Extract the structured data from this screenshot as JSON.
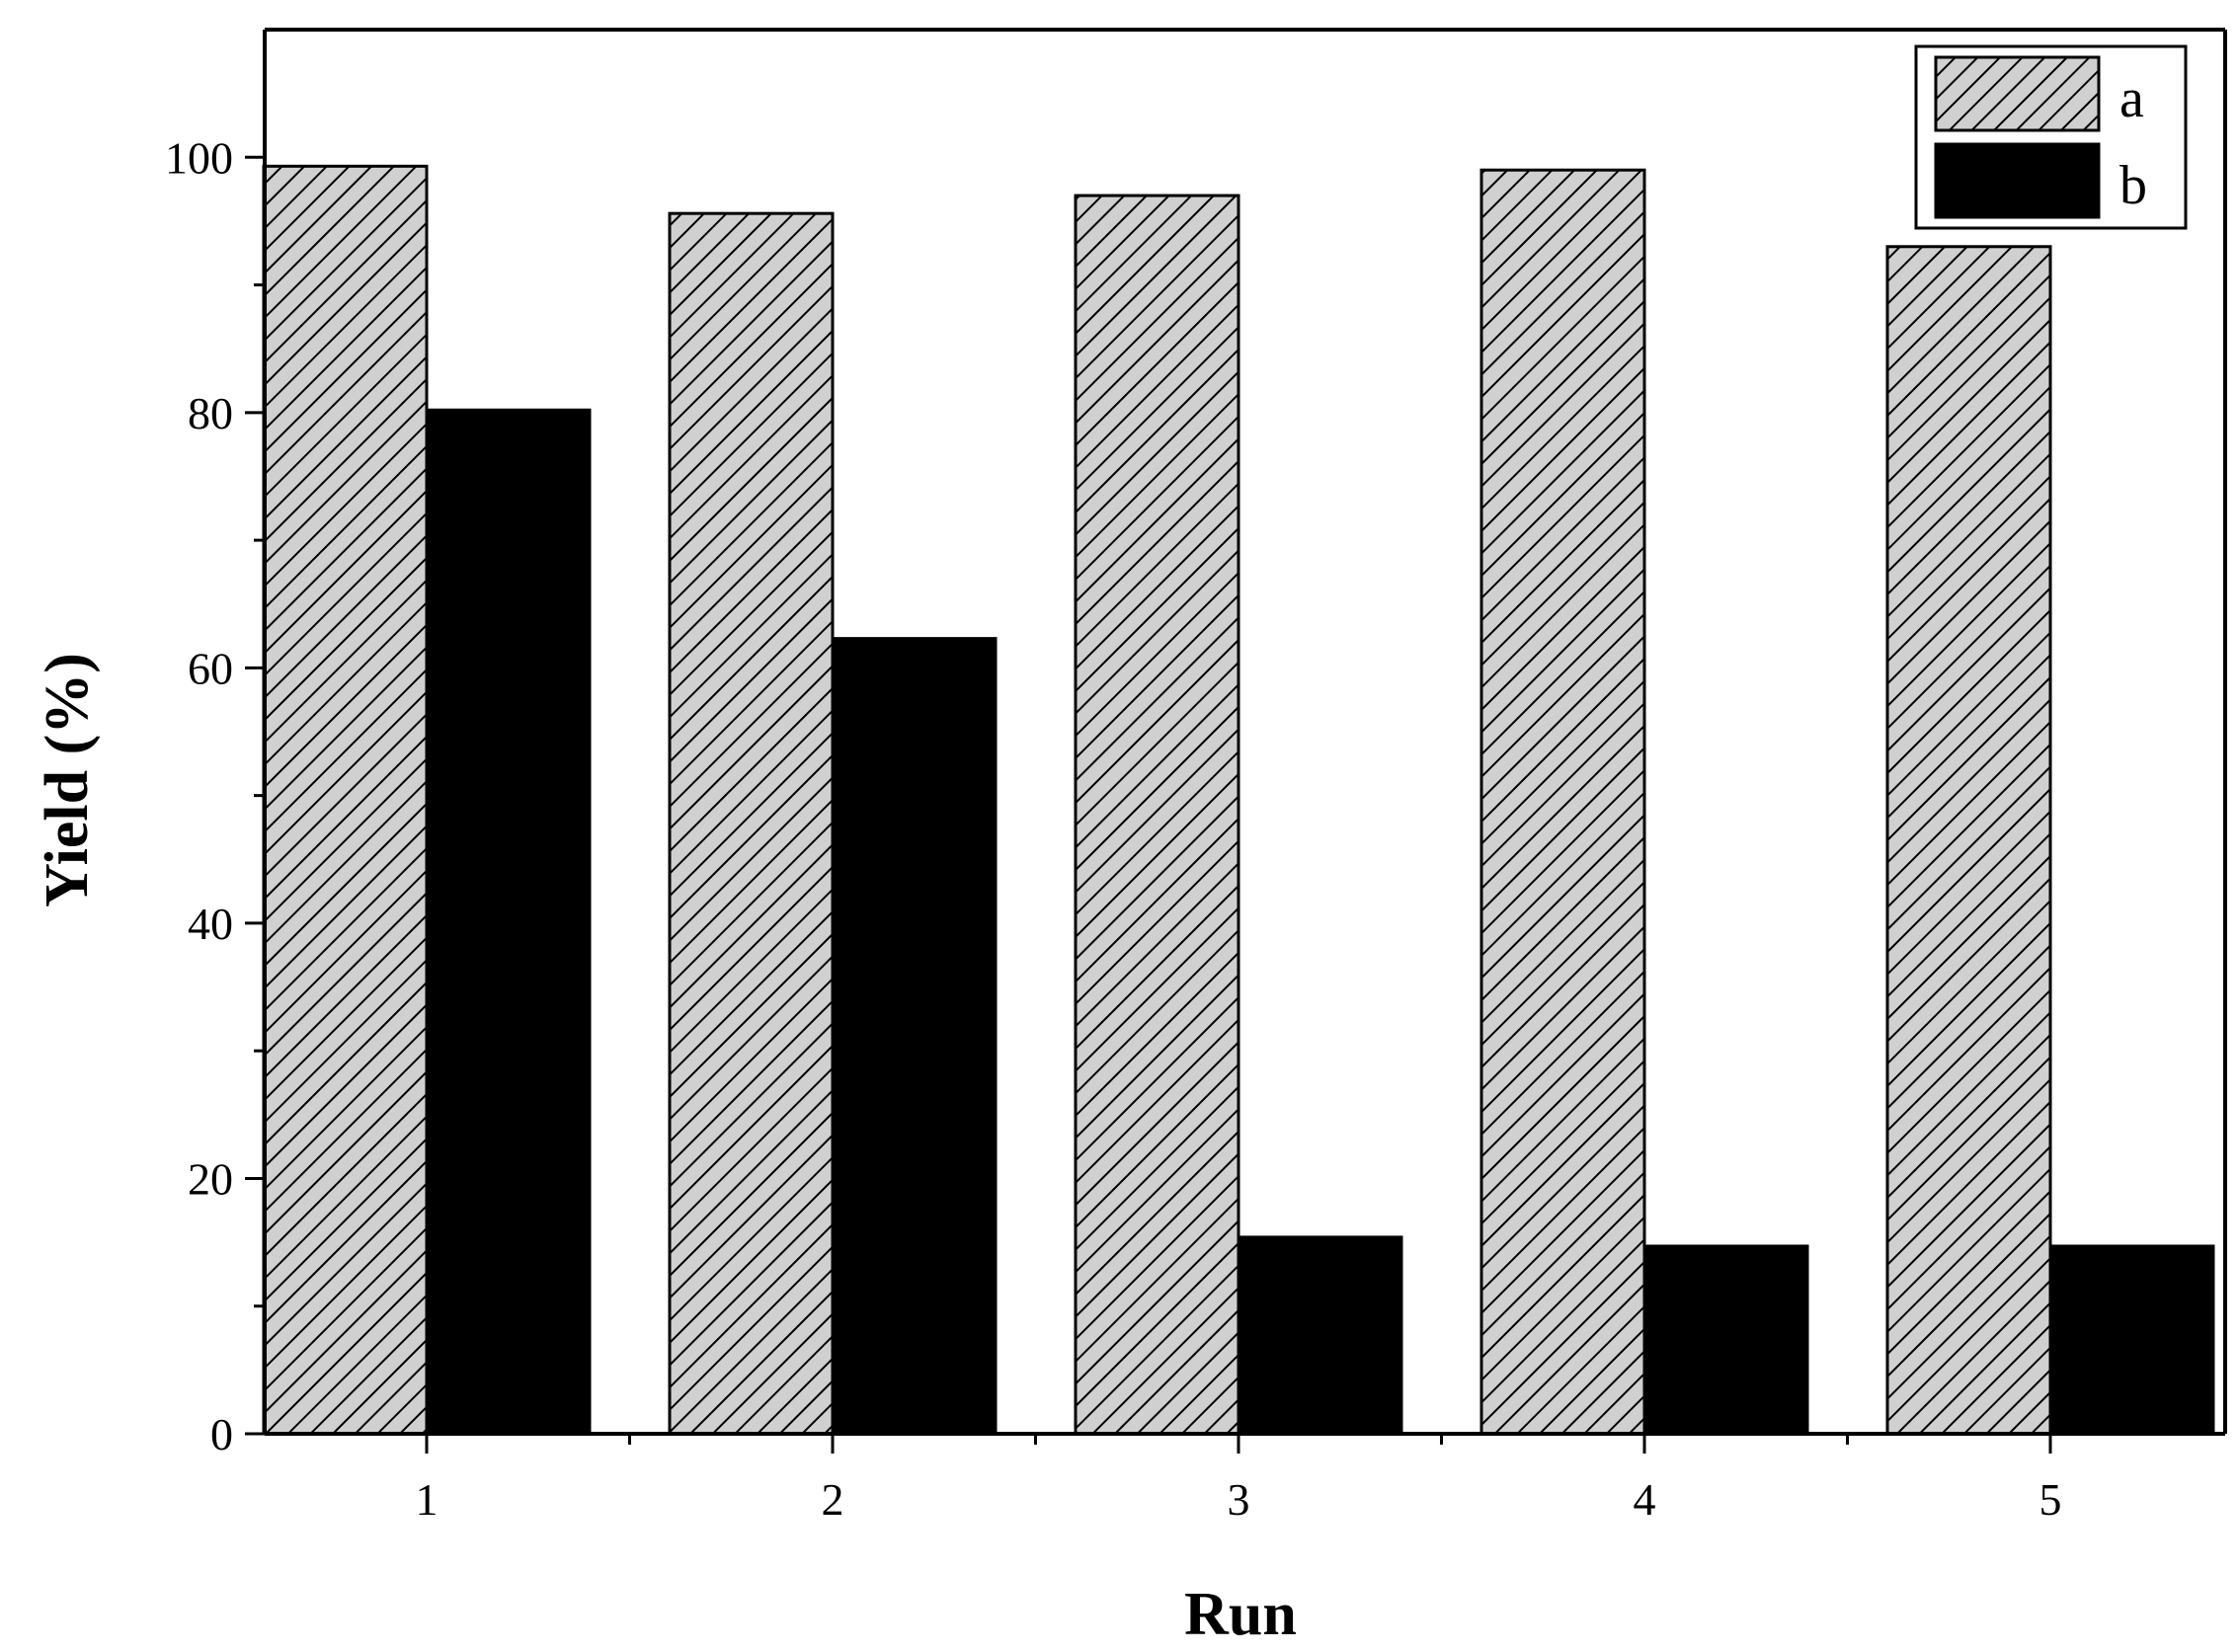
{
  "chart_data": {
    "type": "bar",
    "title": "",
    "xlabel": "Run",
    "ylabel": "Yield (%)",
    "categories": [
      "1",
      "2",
      "3",
      "4",
      "5"
    ],
    "ylim": [
      0,
      110
    ],
    "yticks": [
      0,
      20,
      40,
      60,
      80,
      100
    ],
    "yticks_labels": [
      "0",
      "20",
      "40",
      "60",
      "80",
      "100"
    ],
    "series": [
      {
        "name": "a",
        "values": [
          99.3,
          95.6,
          97.0,
          99.0,
          93.0
        ],
        "fill": "hatched",
        "color": "#d0d0d0"
      },
      {
        "name": "b",
        "values": [
          80.2,
          62.3,
          15.4,
          14.7,
          14.7
        ],
        "fill": "solid",
        "color": "#000000"
      }
    ],
    "grid": false,
    "legend": "top-right"
  }
}
